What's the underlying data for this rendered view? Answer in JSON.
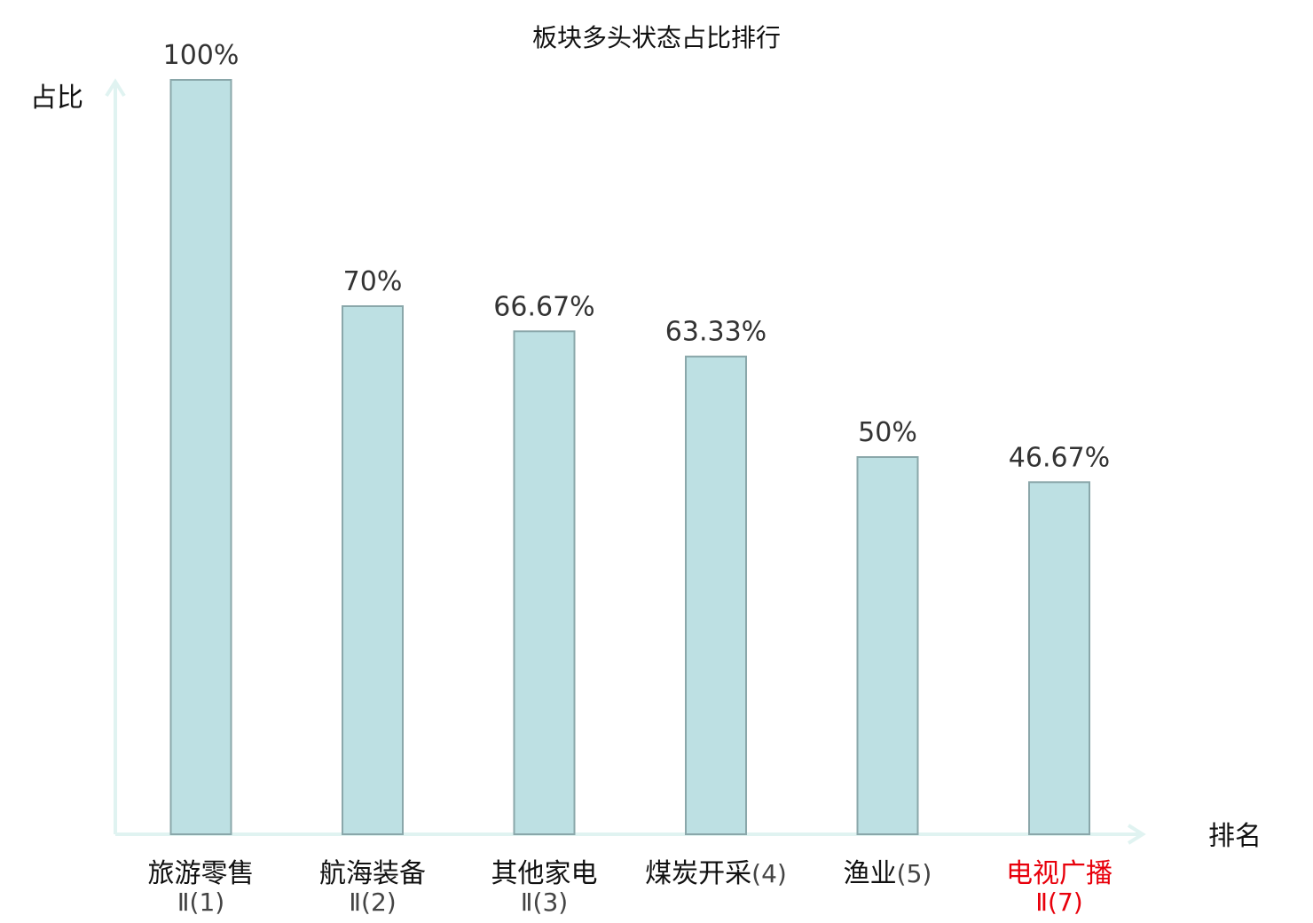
{
  "chart_data": {
    "type": "bar",
    "title": "板块多头状态占比排行",
    "xlabel": "排名",
    "ylabel": "占比",
    "ylim": [
      0,
      100
    ],
    "grid": false,
    "categories": [
      "旅游零售Ⅱ(1)",
      "航海装备Ⅱ(2)",
      "其他家电Ⅱ(3)",
      "煤炭开采(4)",
      "渔业(5)",
      "电视广播Ⅱ(7)"
    ],
    "category_lines": [
      [
        "旅游零售",
        "Ⅱ(1)"
      ],
      [
        "航海装备",
        "Ⅱ(2)"
      ],
      [
        "其他家电",
        "Ⅱ(3)"
      ],
      [
        "煤炭开采",
        "(4)"
      ],
      [
        "渔业",
        "(5)"
      ],
      [
        "电视广播",
        "Ⅱ(7)"
      ]
    ],
    "values": [
      100,
      70,
      66.67,
      63.33,
      50,
      46.67
    ],
    "value_labels": [
      "100%",
      "70%",
      "66.67%",
      "63.33%",
      "50%",
      "46.67%"
    ],
    "highlight_index": 5,
    "colors": {
      "bar_fill": "#bde0e3",
      "bar_stroke": "#8aa7aa",
      "axis": "#e0f3f1",
      "text": "#111111",
      "value_text": "#333333",
      "rank_text": "#444444",
      "highlight": "#e8000b"
    }
  }
}
